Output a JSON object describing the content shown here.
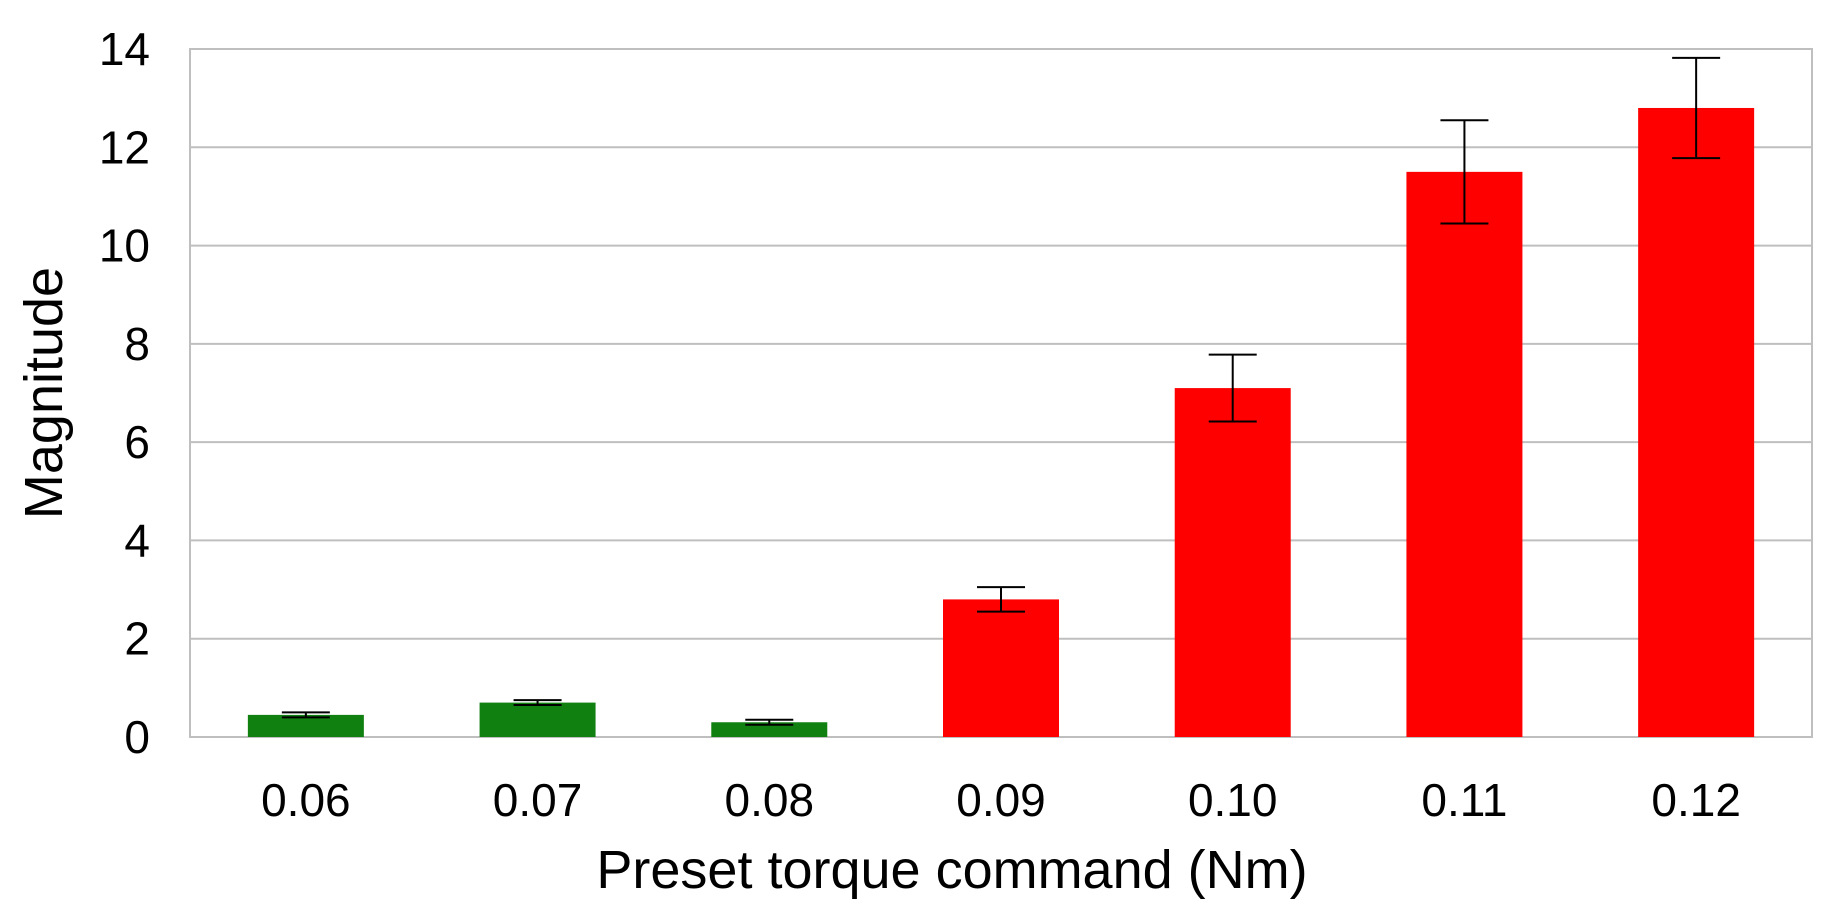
{
  "chart_data": {
    "type": "bar",
    "title": "",
    "xlabel": "Preset torque command (Nm)",
    "ylabel": "Magnitude",
    "categories": [
      "0.06",
      "0.07",
      "0.08",
      "0.09",
      "0.10",
      "0.11",
      "0.12"
    ],
    "values": [
      0.45,
      0.7,
      0.3,
      2.8,
      7.1,
      11.5,
      12.8
    ],
    "error": [
      0.05,
      0.05,
      0.05,
      0.25,
      0.68,
      1.05,
      1.02
    ],
    "bar_colors": [
      "#108010",
      "#108010",
      "#108010",
      "#ff0000",
      "#ff0000",
      "#ff0000",
      "#ff0000"
    ],
    "ylim": [
      0,
      14
    ],
    "yticks": [
      "0",
      "2",
      "4",
      "6",
      "8",
      "10",
      "12",
      "14"
    ],
    "grid": true,
    "legend": "none"
  }
}
